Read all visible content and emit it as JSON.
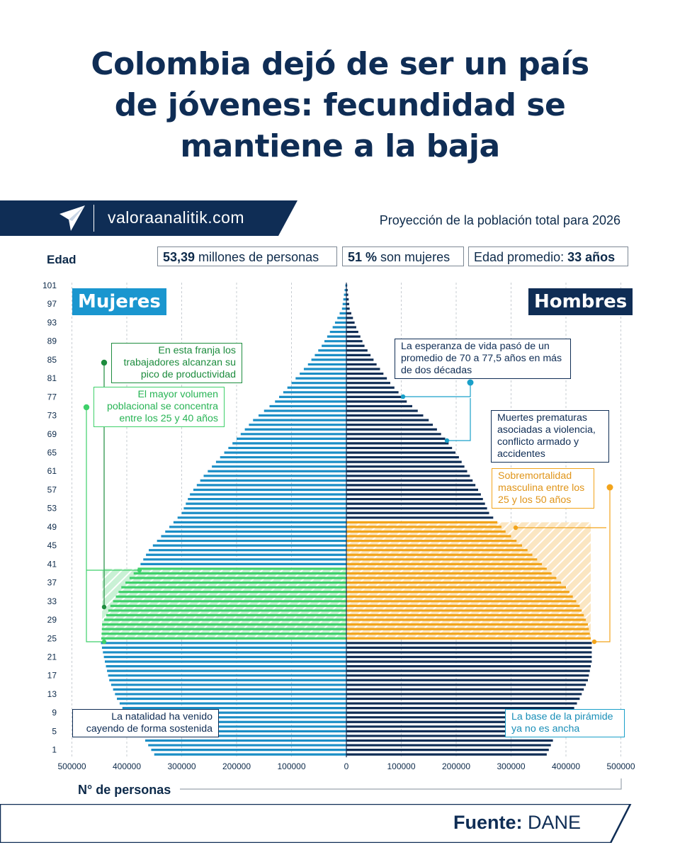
{
  "title": {
    "line1": "Colombia dejó de ser un país",
    "line2": "de jóvenes: fecundidad se",
    "line3": "mantiene a la baja"
  },
  "brand": {
    "site": "valoraanalitik.com",
    "band_color": "#0f2d55"
  },
  "subtitle": "Proyección de la población total para 2026",
  "stats": {
    "population_value": "53,39",
    "population_text": " millones de personas",
    "women_value": "51 %",
    "women_text": " son mujeres",
    "age_text": "Edad promedio: ",
    "age_value": "33 años"
  },
  "labels": {
    "y_axis": "Edad",
    "x_axis": "N° de personas",
    "women": "Mujeres",
    "men": "Hombres"
  },
  "colors": {
    "women": "#1b8ec6",
    "women_tag": "#1a96cf",
    "men": "#0f2d55",
    "green": "#3ed06a",
    "green_dark": "#1d8c3e",
    "orange": "#f2a41b",
    "cyan": "#1aa0c9"
  },
  "annotations": {
    "productivity": "En esta franja los trabajadores alcanzan su pico de productividad",
    "volume": "El mayor volumen poblacional se concentra entre los 25 y 40 años",
    "natality": "La natalidad ha venido cayendo de forma sostenida",
    "life_expectancy": "La esperanza de vida pasó de un promedio de 70 a 77,5 años en más de dos décadas",
    "premature": "Muertes prematuras asociadas a violencia, conflicto armado y accidentes",
    "overmortality": "Sobremortalidad masculina entre los 25 y los 50 años",
    "base": "La base de la pirámide ya no es ancha"
  },
  "footer": {
    "label": "Fuente:",
    "source": "DANE",
    "band_color": "#0f2d55"
  },
  "chart_data": {
    "type": "bar",
    "orientation": "horizontal-population-pyramid",
    "title": "Proyección de la población total para 2026",
    "xlabel": "N° de personas",
    "ylabel": "Edad",
    "xlim": [
      -500000,
      500000
    ],
    "x_tick_values": [
      -500000,
      -400000,
      -300000,
      -200000,
      -100000,
      0,
      100000,
      200000,
      300000,
      400000,
      500000
    ],
    "x_tick_labels": [
      "500000",
      "400000",
      "300000",
      "200000",
      "100000",
      "0",
      "100000",
      "200000",
      "300000",
      "400000",
      "500000"
    ],
    "y_tick_labels": [
      "1",
      "5",
      "9",
      "13",
      "17",
      "21",
      "25",
      "29",
      "33",
      "37",
      "41",
      "45",
      "49",
      "53",
      "57",
      "61",
      "65",
      "69",
      "73",
      "77",
      "81",
      "85",
      "89",
      "93",
      "97",
      "101"
    ],
    "age_start": 0,
    "age_end": 101,
    "series": [
      {
        "name": "Mujeres",
        "side": "left",
        "knots_age": [
          0,
          4,
          8,
          12,
          16,
          20,
          24,
          28,
          32,
          36,
          40,
          44,
          48,
          52,
          56,
          60,
          64,
          68,
          72,
          76,
          80,
          84,
          88,
          92,
          96,
          101
        ],
        "knots_value": [
          350000,
          372000,
          398000,
          418000,
          432000,
          440000,
          447000,
          445000,
          430000,
          410000,
          380000,
          360000,
          330000,
          300000,
          285000,
          260000,
          230000,
          200000,
          170000,
          130000,
          100000,
          70000,
          45000,
          25000,
          8000,
          2000
        ]
      },
      {
        "name": "Hombres",
        "side": "right",
        "knots_age": [
          0,
          4,
          8,
          12,
          16,
          20,
          24,
          28,
          32,
          36,
          40,
          44,
          48,
          52,
          56,
          60,
          64,
          68,
          72,
          76,
          80,
          84,
          88,
          92,
          96,
          101
        ],
        "knots_value": [
          365000,
          380000,
          405000,
          425000,
          440000,
          447000,
          447000,
          440000,
          425000,
          400000,
          365000,
          330000,
          290000,
          260000,
          245000,
          225000,
          205000,
          180000,
          150000,
          110000,
          80000,
          55000,
          33000,
          18000,
          6000,
          1500
        ]
      }
    ],
    "highlights": [
      {
        "label": "25-40",
        "side": "left",
        "color": "green",
        "age_from": 25,
        "age_to": 40
      },
      {
        "label": "25-50",
        "side": "right",
        "color": "orange",
        "age_from": 25,
        "age_to": 50
      }
    ]
  }
}
